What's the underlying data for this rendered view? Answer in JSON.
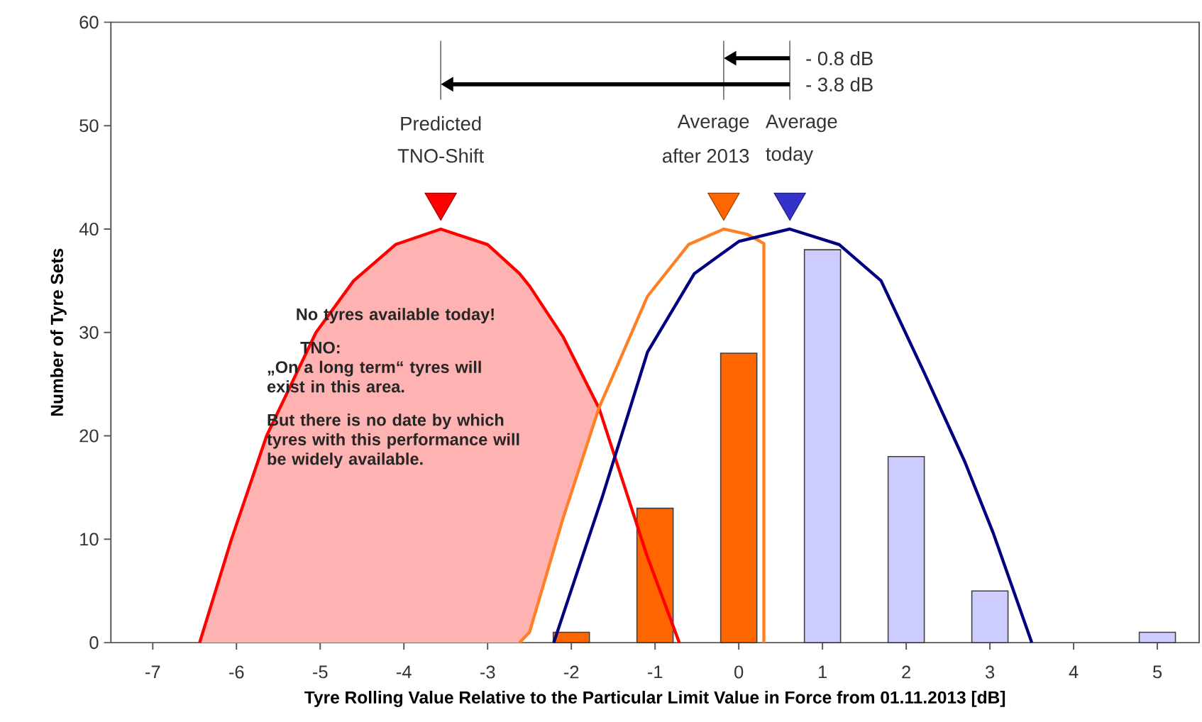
{
  "chart_data": {
    "type": "bar",
    "xlabel": "Tyre Rolling Value Relative to the Particular Limit Value in Force from 01.11.2013 [dB]",
    "ylabel": "Number of Tyre Sets",
    "xlim": [
      -7.5,
      5.5
    ],
    "xticks": [
      -7,
      -6,
      -5,
      -4,
      -3,
      -2,
      -1,
      0,
      1,
      2,
      3,
      4,
      5
    ],
    "ylim": [
      0,
      60
    ],
    "yticks": [
      0,
      10,
      20,
      30,
      40,
      50,
      60
    ],
    "series": [
      {
        "x": [
          -2,
          -1,
          0
        ],
        "values": [
          1,
          13,
          28
        ],
        "color": "#ff6600"
      },
      {
        "x": [
          1,
          2,
          3,
          5
        ],
        "values": [
          38,
          18,
          5,
          1
        ],
        "color": "#ccccff"
      },
      {
        "type": "line",
        "x": [
          -6.44,
          -6.06,
          -5.64,
          -5.05,
          -4.6,
          -4.1,
          -3.56,
          -3.0,
          -2.62,
          -2.5,
          -2.1,
          -1.67,
          -1.1,
          -0.71
        ],
        "values": [
          0,
          10,
          20,
          30,
          35,
          38.5,
          40,
          38.5,
          35.7,
          34.5,
          29.6,
          22.7,
          8.5,
          0
        ],
        "lower": [
          0,
          0,
          0,
          0,
          0,
          0,
          0,
          0,
          0,
          1,
          12,
          22.7,
          null,
          null
        ],
        "upper": [
          0,
          10,
          20,
          30,
          35,
          38.5,
          40,
          38.5,
          35.7,
          34.5,
          29.6,
          22.7,
          null,
          null
        ],
        "color": "#ff0000"
      },
      {
        "type": "line",
        "x": [
          -2.62,
          -2.5,
          -2.1,
          -1.67,
          -1.09,
          -0.6,
          -0.18,
          0.1,
          0.3,
          0.3
        ],
        "values": [
          0,
          1,
          12,
          22.7,
          33.5,
          38.5,
          40,
          39.5,
          38.6,
          0
        ],
        "color": "#ff7f27"
      },
      {
        "type": "line",
        "x": [
          -2.21,
          -1.63,
          -1.09,
          -0.53,
          0,
          0.61,
          1.2,
          1.7,
          2.21,
          2.7,
          3.04,
          3.5
        ],
        "values": [
          0,
          14.1,
          28.1,
          35.7,
          38.8,
          40,
          38.5,
          35,
          26.2,
          17.5,
          10.6,
          0
        ],
        "color": "#000080"
      },
      {
        "type": "scatter",
        "x": [
          -3.56,
          -0.18,
          0.61
        ],
        "values": [
          42.6,
          42.6,
          42.6
        ],
        "colors": [
          "#ff0000",
          "#ff6600",
          "#3333cc"
        ],
        "marker": "triangle"
      }
    ],
    "annotations": [
      "No tyres available today!",
      "TNO:",
      "„On a long term“ tyres will exist in this area.",
      "But there is no date by which tyres with this performance will be widely available.",
      "Predicted",
      "TNO-Shift",
      "Average",
      "after 2013",
      "Average",
      "today",
      "- 0.8 dB",
      "- 3.8 dB"
    ]
  }
}
